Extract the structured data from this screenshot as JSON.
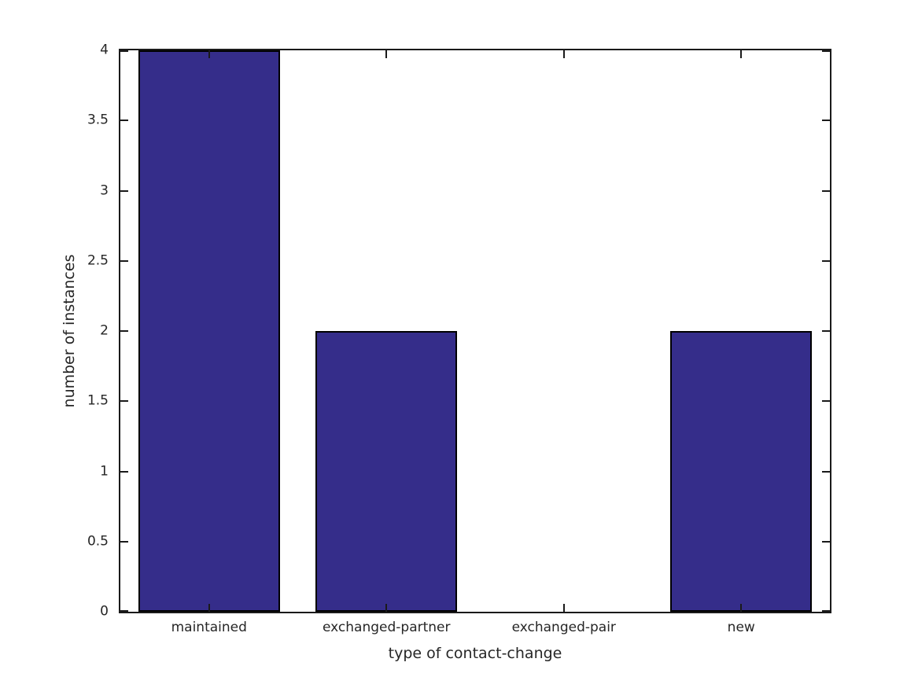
{
  "chart_data": {
    "type": "bar",
    "categories": [
      "maintained",
      "exchanged-partner",
      "exchanged-pair",
      "new"
    ],
    "values": [
      4,
      2,
      0,
      2
    ],
    "title": "",
    "xlabel": "type of contact-change",
    "ylabel": "number of instances",
    "ylim": [
      0,
      4
    ],
    "yticks": [
      0,
      0.5,
      1,
      1.5,
      2,
      2.5,
      3,
      3.5,
      4
    ],
    "ytick_labels": [
      "0",
      "0.5",
      "1",
      "1.5",
      "2",
      "2.5",
      "3",
      "3.5",
      "4"
    ],
    "grid": false,
    "legend": false,
    "box": true,
    "tick_direction": "in",
    "bar_width_ratio": 0.8,
    "colors": {
      "bar_fill": "#352D8A",
      "bar_edge": "#000000",
      "axis": "#1a1a1a",
      "text": "#262626",
      "background": "#ffffff"
    }
  }
}
